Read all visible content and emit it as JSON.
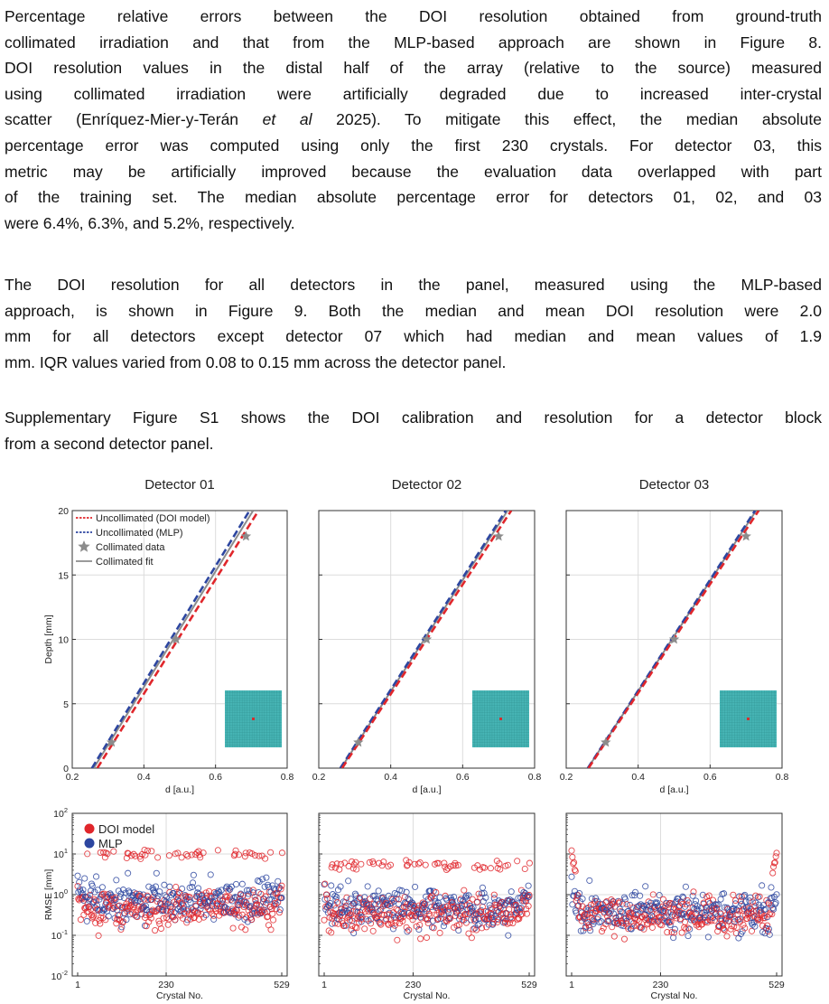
{
  "paragraphs": [
    {
      "lines": [
        "Percentage relative errors between the DOI resolution obtained from ground-truth",
        "collimated irradiation and that from the MLP-based approach are shown in Figure 8.",
        "DOI resolution values in the distal half of the array (relative to the source) measured",
        "using collimated irradiation were artificially degraded due to increased inter-crystal",
        "scatter (Enríquez-Mier-y-Terán |et al| 2025). To mitigate this effect, the median absolute",
        "percentage error was computed using only the first 230 crystals. For detector 03, this",
        "metric may be artificially improved because the evaluation data overlapped with part",
        "of the training set. The median absolute percentage error for detectors 01, 02, and 03",
        "were 6.4%, 6.3%, and 5.2%, respectively."
      ]
    },
    {
      "lines": [
        "The DOI resolution for all detectors in the panel, measured using the MLP-based",
        "approach, is shown in Figure 9. Both the median and mean DOI resolution were 2.0",
        "mm for all detectors except detector 07 which had median and mean values of 1.9",
        "mm. IQR values varied from 0.08 to 0.15 mm across the detector panel."
      ]
    },
    {
      "lines": [
        "Supplementary Figure S1 shows the DOI calibration and resolution for a detector block",
        "from a second detector panel."
      ]
    }
  ],
  "colors": {
    "doi_model": "#e0262b",
    "mlp": "#2d46a0",
    "collimated": "#8c8c8c",
    "crystal_array": "#46b4b4",
    "source_marker": "#d03030"
  },
  "chart_data": [
    {
      "type": "line",
      "title": "Detector 01",
      "xlabel": "d [a.u.]",
      "ylabel": "Depth [mm]",
      "xlim": [
        0.2,
        0.8
      ],
      "ylim": [
        0,
        20
      ],
      "xticks": [
        "0.2",
        "0.4",
        "0.6",
        "0.8"
      ],
      "yticks": [
        "0",
        "5",
        "10",
        "15",
        "20"
      ],
      "grid": true,
      "legend": "top-left",
      "series": [
        {
          "name": "Uncollimated (DOI model)",
          "style": "dashed",
          "x": [
            0.27,
            0.72
          ],
          "y": [
            0,
            20
          ]
        },
        {
          "name": "Uncollimated (MLP)",
          "style": "dashed",
          "x": [
            0.255,
            0.695
          ],
          "y": [
            0,
            20
          ]
        },
        {
          "name": "Collimated data",
          "style": "star",
          "x": [
            0.31,
            0.49,
            0.685
          ],
          "y": [
            2,
            10,
            18
          ]
        },
        {
          "name": "Collimated fit",
          "style": "solid",
          "x": [
            0.26,
            0.705
          ],
          "y": [
            0,
            20
          ]
        }
      ]
    },
    {
      "type": "line",
      "title": "Detector 02",
      "xlabel": "d [a.u.]",
      "ylabel": "",
      "xlim": [
        0.2,
        0.8
      ],
      "ylim": [
        0,
        20
      ],
      "xticks": [
        "0.2",
        "0.4",
        "0.6",
        "0.8"
      ],
      "yticks": [
        "0",
        "5",
        "10",
        "15",
        "20"
      ],
      "grid": true,
      "series": [
        {
          "name": "Uncollimated (DOI model)",
          "style": "dashed",
          "x": [
            0.265,
            0.735
          ],
          "y": [
            0,
            20
          ]
        },
        {
          "name": "Uncollimated (MLP)",
          "style": "dashed",
          "x": [
            0.26,
            0.72
          ],
          "y": [
            0,
            20
          ]
        },
        {
          "name": "Collimated data",
          "style": "star",
          "x": [
            0.31,
            0.5,
            0.7
          ],
          "y": [
            2,
            10,
            18
          ]
        },
        {
          "name": "Collimated fit",
          "style": "solid",
          "x": [
            0.262,
            0.725
          ],
          "y": [
            0,
            20
          ]
        }
      ]
    },
    {
      "type": "line",
      "title": "Detector 03",
      "xlabel": "d [a.u.]",
      "ylabel": "",
      "xlim": [
        0.2,
        0.8
      ],
      "ylim": [
        0,
        20
      ],
      "xticks": [
        "0.2",
        "0.4",
        "0.6",
        "0.8"
      ],
      "yticks": [
        "0",
        "5",
        "10",
        "15",
        "20"
      ],
      "grid": true,
      "series": [
        {
          "name": "Uncollimated (DOI model)",
          "style": "dashed",
          "x": [
            0.262,
            0.735
          ],
          "y": [
            0,
            20
          ]
        },
        {
          "name": "Uncollimated (MLP)",
          "style": "dashed",
          "x": [
            0.26,
            0.725
          ],
          "y": [
            0,
            20
          ]
        },
        {
          "name": "Collimated data",
          "style": "star",
          "x": [
            0.31,
            0.5,
            0.7
          ],
          "y": [
            2,
            10,
            18
          ]
        },
        {
          "name": "Collimated fit",
          "style": "solid",
          "x": [
            0.26,
            0.728
          ],
          "y": [
            0,
            20
          ]
        }
      ]
    },
    {
      "type": "scatter",
      "title": "",
      "xlabel": "Crystal No.",
      "ylabel": "RMSE [mm]",
      "yscale": "log",
      "xlim": [
        1,
        529
      ],
      "ylim": [
        0.01,
        100
      ],
      "xticks": [
        "1",
        "230",
        "529"
      ],
      "yticks": [
        "10^-2",
        "10^-1",
        "10^0",
        "10^1",
        "10^2"
      ],
      "grid": true,
      "legend": "top-left",
      "legend_entries": [
        "DOI model",
        "MLP"
      ],
      "series": [
        {
          "name": "DOI model",
          "n_points": 529,
          "median": 0.45,
          "high_outliers_near": 10
        },
        {
          "name": "MLP",
          "n_points": 529,
          "median": 0.7
        }
      ]
    },
    {
      "type": "scatter",
      "title": "",
      "xlabel": "Crystal No.",
      "ylabel": "",
      "yscale": "log",
      "xlim": [
        1,
        529
      ],
      "ylim": [
        0.01,
        100
      ],
      "xticks": [
        "1",
        "230",
        "529"
      ],
      "grid": true,
      "series": [
        {
          "name": "DOI model",
          "n_points": 529,
          "median": 0.35,
          "high_outliers_near": 6
        },
        {
          "name": "MLP",
          "n_points": 529,
          "median": 0.5
        }
      ]
    },
    {
      "type": "scatter",
      "title": "",
      "xlabel": "Crystal No.",
      "ylabel": "",
      "yscale": "log",
      "xlim": [
        1,
        529
      ],
      "ylim": [
        0.01,
        100
      ],
      "xticks": [
        "1",
        "230",
        "529"
      ],
      "grid": true,
      "series": [
        {
          "name": "DOI model",
          "n_points": 529,
          "median": 0.3,
          "edge_peak": 12
        },
        {
          "name": "MLP",
          "n_points": 529,
          "median": 0.4
        }
      ]
    }
  ]
}
